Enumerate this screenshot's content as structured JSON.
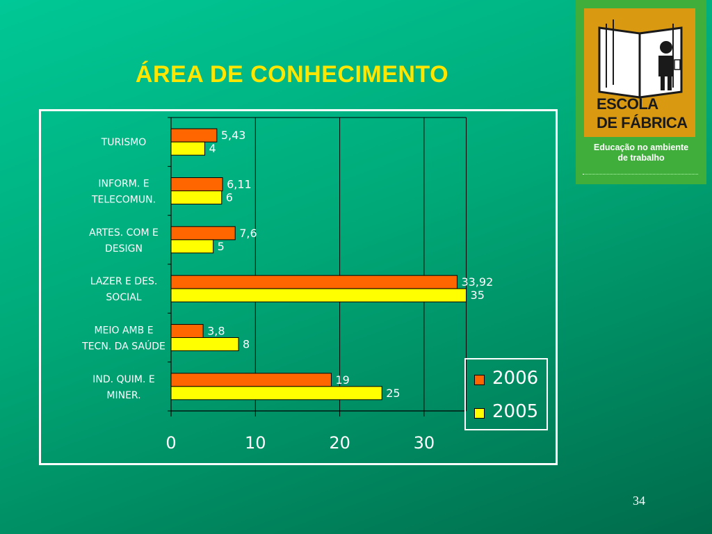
{
  "slide": {
    "title": "ÁREA DE CONHECIMENTO",
    "page_number": "34"
  },
  "logo": {
    "line1": "ESCOLA",
    "line2": "DE FÁBRICA",
    "caption_line1": "Educação no ambiente",
    "caption_line2": "de trabalho",
    "icon": "open-book-with-person-icon"
  },
  "colors": {
    "series_2006": "#ff6600",
    "series_2005": "#ffff00",
    "background": "#00a877",
    "title": "#ffe600"
  },
  "chart_data": {
    "type": "bar",
    "orientation": "horizontal",
    "categories": [
      "TURISMO",
      "INFORM. E TELECOMUN.",
      "ARTES. COM E DESIGN",
      "LAZER E DES. SOCIAL",
      "MEIO AMB E TECN. DA SAÚDE",
      "IND. QUIM. E MINER."
    ],
    "category_lines": [
      [
        "TURISMO"
      ],
      [
        "INFORM. E",
        "TELECOMUN."
      ],
      [
        "ARTES. COM E",
        "DESIGN"
      ],
      [
        "LAZER E DES.",
        "SOCIAL"
      ],
      [
        "MEIO AMB E",
        "TECN. DA SAÚDE"
      ],
      [
        "IND. QUIM. E",
        "MINER."
      ]
    ],
    "series": [
      {
        "name": "2006",
        "values": [
          5.43,
          6.11,
          7.6,
          33.92,
          3.8,
          19
        ],
        "labels": [
          "5,43",
          "6,11",
          "7,6",
          "33,92",
          "3,8",
          "19"
        ]
      },
      {
        "name": "2005",
        "values": [
          4,
          6,
          5,
          35,
          8,
          25
        ],
        "labels": [
          "4",
          "6",
          "5",
          "35",
          "8",
          "25"
        ]
      }
    ],
    "xlim": [
      0,
      35
    ],
    "xticks": [
      "0",
      "10",
      "20",
      "30"
    ],
    "grid": "vertical",
    "legend": "bottom-right"
  }
}
